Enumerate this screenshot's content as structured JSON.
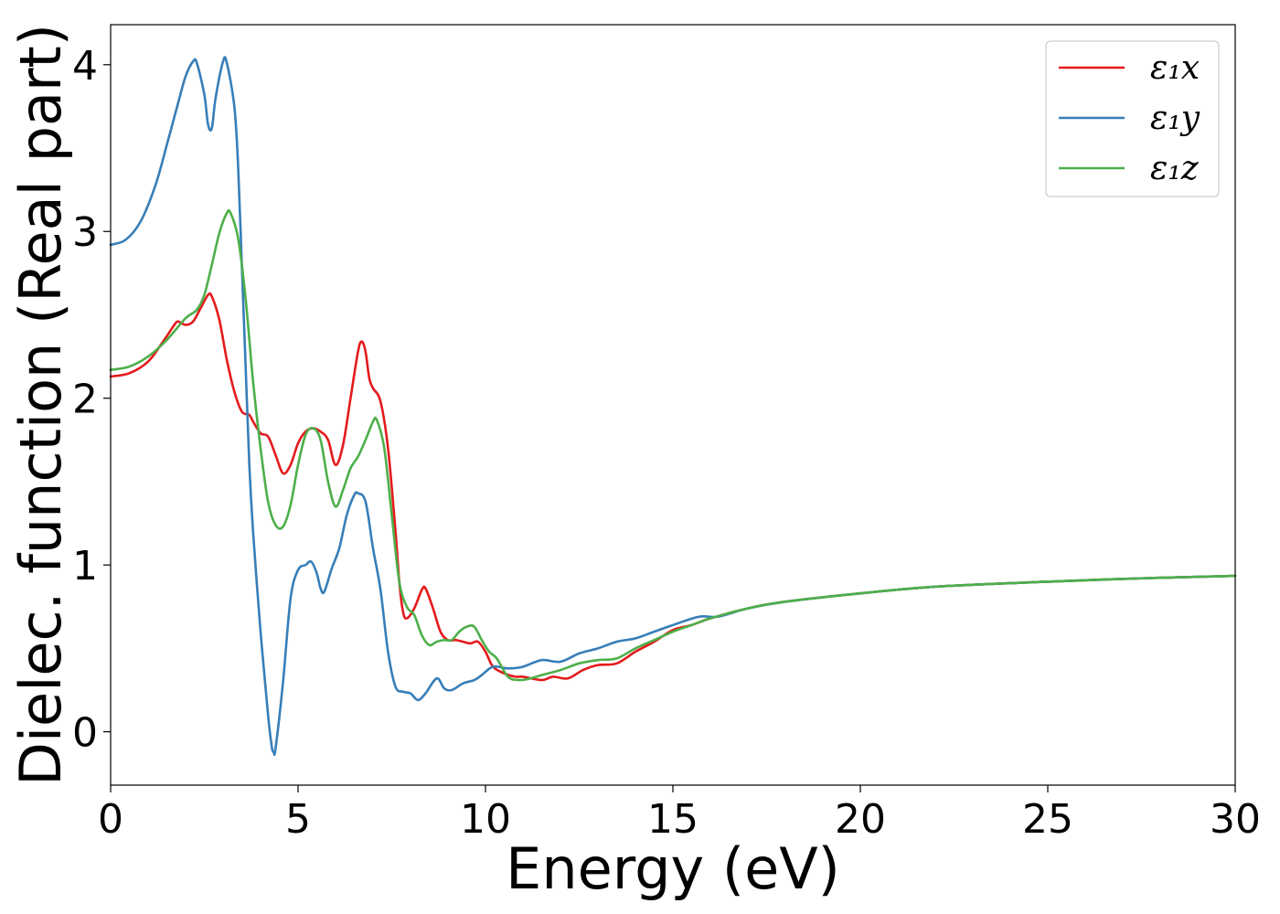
{
  "chart_data": {
    "type": "line",
    "title": "",
    "xlabel": "Energy (eV)",
    "ylabel": "Dielec. function (Real part)",
    "xlim": [
      0,
      30
    ],
    "ylim": [
      -0.32,
      4.24
    ],
    "xticks": [
      0,
      5,
      10,
      15,
      20,
      25,
      30
    ],
    "yticks": [
      0,
      1,
      2,
      3,
      4
    ],
    "grid": false,
    "legend_position": "top-right",
    "series": [
      {
        "name": "ε₁x",
        "color": "#e41a1c",
        "points": [
          [
            0,
            2.13
          ],
          [
            0.5,
            2.15
          ],
          [
            1.0,
            2.22
          ],
          [
            1.4,
            2.34
          ],
          [
            1.7,
            2.44
          ],
          [
            1.8,
            2.46
          ],
          [
            2.0,
            2.44
          ],
          [
            2.2,
            2.46
          ],
          [
            2.4,
            2.54
          ],
          [
            2.6,
            2.62
          ],
          [
            2.7,
            2.61
          ],
          [
            2.9,
            2.47
          ],
          [
            3.1,
            2.23
          ],
          [
            3.3,
            2.04
          ],
          [
            3.5,
            1.92
          ],
          [
            3.7,
            1.9
          ],
          [
            3.8,
            1.86
          ],
          [
            4.0,
            1.79
          ],
          [
            4.2,
            1.77
          ],
          [
            4.4,
            1.66
          ],
          [
            4.6,
            1.55
          ],
          [
            4.8,
            1.6
          ],
          [
            5.0,
            1.73
          ],
          [
            5.2,
            1.8
          ],
          [
            5.4,
            1.82
          ],
          [
            5.6,
            1.8
          ],
          [
            5.8,
            1.75
          ],
          [
            6.0,
            1.6
          ],
          [
            6.2,
            1.72
          ],
          [
            6.4,
            2.0
          ],
          [
            6.6,
            2.28
          ],
          [
            6.7,
            2.34
          ],
          [
            6.8,
            2.28
          ],
          [
            6.9,
            2.12
          ],
          [
            7.0,
            2.06
          ],
          [
            7.2,
            1.98
          ],
          [
            7.4,
            1.7
          ],
          [
            7.6,
            1.2
          ],
          [
            7.7,
            0.9
          ],
          [
            7.8,
            0.72
          ],
          [
            7.9,
            0.68
          ],
          [
            8.1,
            0.74
          ],
          [
            8.3,
            0.85
          ],
          [
            8.4,
            0.86
          ],
          [
            8.6,
            0.74
          ],
          [
            8.8,
            0.6
          ],
          [
            9.0,
            0.55
          ],
          [
            9.2,
            0.55
          ],
          [
            9.4,
            0.54
          ],
          [
            9.6,
            0.53
          ],
          [
            9.8,
            0.54
          ],
          [
            10.0,
            0.48
          ],
          [
            10.2,
            0.39
          ],
          [
            10.5,
            0.35
          ],
          [
            10.8,
            0.33
          ],
          [
            11.0,
            0.33
          ],
          [
            11.5,
            0.31
          ],
          [
            11.8,
            0.33
          ],
          [
            12.2,
            0.32
          ],
          [
            12.6,
            0.37
          ],
          [
            13.0,
            0.4
          ],
          [
            13.5,
            0.41
          ],
          [
            14.0,
            0.48
          ],
          [
            14.5,
            0.54
          ],
          [
            15.0,
            0.61
          ],
          [
            15.5,
            0.64
          ],
          [
            16.0,
            0.68
          ],
          [
            17.0,
            0.74
          ],
          [
            18.0,
            0.78
          ],
          [
            20.0,
            0.83
          ],
          [
            22.0,
            0.87
          ],
          [
            25.0,
            0.9
          ],
          [
            27.5,
            0.92
          ],
          [
            30.0,
            0.935
          ]
        ]
      },
      {
        "name": "ε₁y",
        "color": "#377eb8",
        "points": [
          [
            0,
            2.92
          ],
          [
            0.4,
            2.95
          ],
          [
            0.8,
            3.06
          ],
          [
            1.2,
            3.28
          ],
          [
            1.5,
            3.52
          ],
          [
            1.8,
            3.77
          ],
          [
            2.0,
            3.93
          ],
          [
            2.2,
            4.02
          ],
          [
            2.3,
            4.01
          ],
          [
            2.5,
            3.82
          ],
          [
            2.6,
            3.64
          ],
          [
            2.7,
            3.62
          ],
          [
            2.8,
            3.8
          ],
          [
            3.0,
            4.02
          ],
          [
            3.1,
            4.01
          ],
          [
            3.3,
            3.75
          ],
          [
            3.4,
            3.4
          ],
          [
            3.5,
            2.8
          ],
          [
            3.6,
            2.2
          ],
          [
            3.7,
            1.6
          ],
          [
            3.8,
            1.2
          ],
          [
            4.0,
            0.6
          ],
          [
            4.2,
            0.1
          ],
          [
            4.3,
            -0.09
          ],
          [
            4.35,
            -0.12
          ],
          [
            4.4,
            -0.1
          ],
          [
            4.6,
            0.3
          ],
          [
            4.8,
            0.8
          ],
          [
            5.0,
            0.97
          ],
          [
            5.2,
            1.0
          ],
          [
            5.35,
            1.02
          ],
          [
            5.5,
            0.95
          ],
          [
            5.6,
            0.86
          ],
          [
            5.7,
            0.84
          ],
          [
            5.9,
            0.98
          ],
          [
            6.1,
            1.1
          ],
          [
            6.3,
            1.3
          ],
          [
            6.5,
            1.42
          ],
          [
            6.6,
            1.43
          ],
          [
            6.8,
            1.38
          ],
          [
            7.0,
            1.1
          ],
          [
            7.2,
            0.85
          ],
          [
            7.4,
            0.48
          ],
          [
            7.6,
            0.27
          ],
          [
            7.8,
            0.24
          ],
          [
            8.0,
            0.23
          ],
          [
            8.2,
            0.19
          ],
          [
            8.4,
            0.23
          ],
          [
            8.7,
            0.32
          ],
          [
            8.9,
            0.26
          ],
          [
            9.1,
            0.25
          ],
          [
            9.4,
            0.29
          ],
          [
            9.7,
            0.31
          ],
          [
            9.9,
            0.34
          ],
          [
            10.2,
            0.39
          ],
          [
            10.6,
            0.38
          ],
          [
            11.0,
            0.39
          ],
          [
            11.5,
            0.43
          ],
          [
            12.0,
            0.42
          ],
          [
            12.5,
            0.47
          ],
          [
            13.0,
            0.5
          ],
          [
            13.5,
            0.54
          ],
          [
            14.0,
            0.56
          ],
          [
            14.5,
            0.6
          ],
          [
            15.0,
            0.64
          ],
          [
            15.7,
            0.69
          ],
          [
            16.2,
            0.69
          ],
          [
            17.0,
            0.74
          ],
          [
            18.0,
            0.78
          ],
          [
            20.0,
            0.83
          ],
          [
            22.0,
            0.87
          ],
          [
            25.0,
            0.9
          ],
          [
            27.5,
            0.92
          ],
          [
            30.0,
            0.935
          ]
        ]
      },
      {
        "name": "ε₁z",
        "color": "#4daf4a",
        "points": [
          [
            0,
            2.17
          ],
          [
            0.5,
            2.19
          ],
          [
            1.0,
            2.25
          ],
          [
            1.5,
            2.35
          ],
          [
            2.0,
            2.48
          ],
          [
            2.3,
            2.53
          ],
          [
            2.5,
            2.62
          ],
          [
            2.7,
            2.8
          ],
          [
            2.9,
            2.99
          ],
          [
            3.1,
            3.11
          ],
          [
            3.2,
            3.11
          ],
          [
            3.4,
            2.96
          ],
          [
            3.6,
            2.6
          ],
          [
            3.8,
            2.1
          ],
          [
            4.0,
            1.7
          ],
          [
            4.2,
            1.38
          ],
          [
            4.4,
            1.24
          ],
          [
            4.6,
            1.23
          ],
          [
            4.8,
            1.36
          ],
          [
            5.0,
            1.6
          ],
          [
            5.2,
            1.78
          ],
          [
            5.4,
            1.82
          ],
          [
            5.6,
            1.75
          ],
          [
            5.8,
            1.5
          ],
          [
            6.0,
            1.35
          ],
          [
            6.2,
            1.45
          ],
          [
            6.4,
            1.58
          ],
          [
            6.6,
            1.65
          ],
          [
            6.8,
            1.75
          ],
          [
            7.0,
            1.86
          ],
          [
            7.1,
            1.87
          ],
          [
            7.3,
            1.7
          ],
          [
            7.5,
            1.3
          ],
          [
            7.7,
            0.9
          ],
          [
            7.9,
            0.75
          ],
          [
            8.1,
            0.7
          ],
          [
            8.3,
            0.58
          ],
          [
            8.5,
            0.52
          ],
          [
            8.7,
            0.54
          ],
          [
            8.9,
            0.55
          ],
          [
            9.1,
            0.55
          ],
          [
            9.3,
            0.6
          ],
          [
            9.5,
            0.63
          ],
          [
            9.7,
            0.63
          ],
          [
            9.9,
            0.55
          ],
          [
            10.1,
            0.48
          ],
          [
            10.3,
            0.44
          ],
          [
            10.6,
            0.33
          ],
          [
            10.9,
            0.31
          ],
          [
            11.2,
            0.32
          ],
          [
            11.5,
            0.34
          ],
          [
            12.0,
            0.37
          ],
          [
            12.5,
            0.41
          ],
          [
            13.0,
            0.43
          ],
          [
            13.5,
            0.44
          ],
          [
            14.0,
            0.5
          ],
          [
            14.5,
            0.55
          ],
          [
            15.0,
            0.6
          ],
          [
            15.5,
            0.64
          ],
          [
            16.0,
            0.68
          ],
          [
            17.0,
            0.74
          ],
          [
            18.0,
            0.78
          ],
          [
            20.0,
            0.83
          ],
          [
            22.0,
            0.87
          ],
          [
            25.0,
            0.9
          ],
          [
            27.5,
            0.92
          ],
          [
            30.0,
            0.935
          ]
        ]
      }
    ]
  }
}
